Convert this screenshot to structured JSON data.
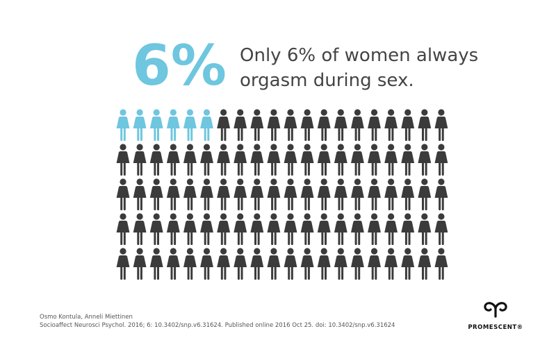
{
  "chart_data": {
    "type": "pictogram",
    "value": 6,
    "value_label": "6%",
    "total": 100,
    "title_lines": [
      "Only 6% of women always",
      "orgasm during sex."
    ],
    "highlight_color": "#6ec6df",
    "base_color": "#3b3b3b",
    "source_lines": [
      "Osmo Kontula, Anneli Miettinen",
      "Socioaffect Neurosci Psychol. 2016; 6: 10.3402/snp.v6.31624. Published online 2016 Oct 25. doi: 10.3402/snp.v6.31624"
    ],
    "brand": "PROMESCENT®"
  }
}
